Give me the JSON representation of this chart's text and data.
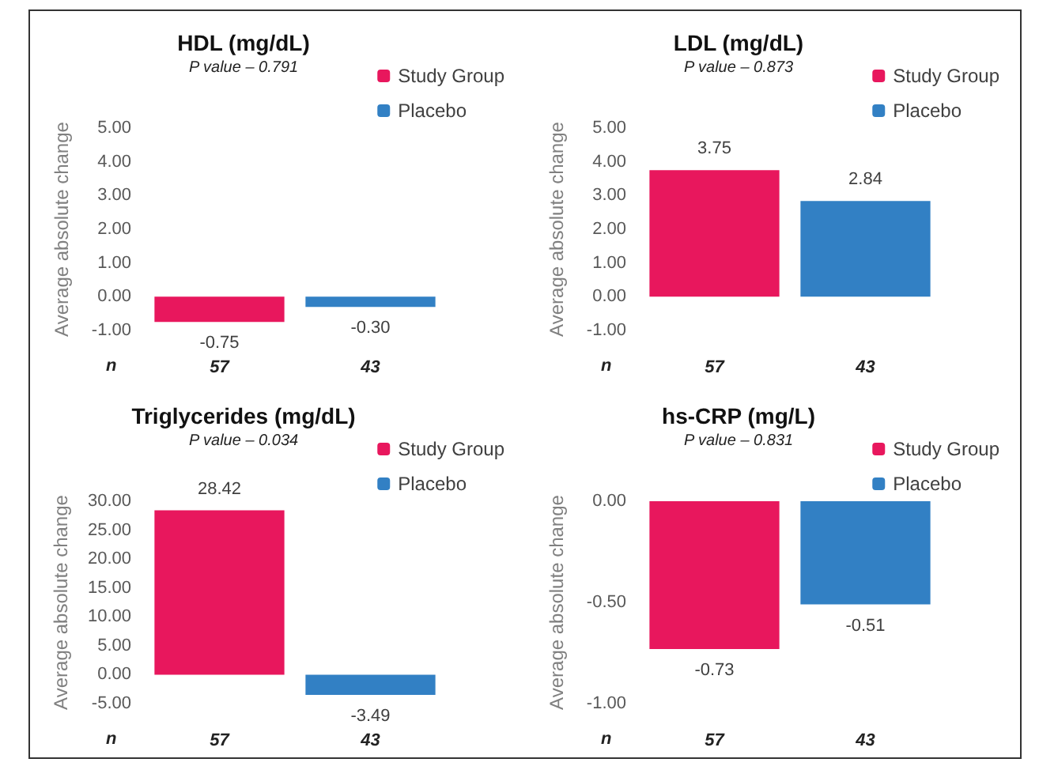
{
  "chart_data": [
    {
      "type": "bar",
      "title": "HDL (mg/dL)",
      "subtitle": "P value – 0.791",
      "ylabel": "Average absolute change",
      "categories": [
        "57",
        "43"
      ],
      "annotations": [
        "n"
      ],
      "series": [
        {
          "name": "Study Group",
          "color": "#e8175d",
          "values": [
            -0.75,
            null
          ],
          "value_labels": [
            "-0.75",
            null
          ]
        },
        {
          "name": "Placebo",
          "color": "#3280c4",
          "values": [
            null,
            -0.3
          ],
          "value_labels": [
            null,
            "-0.30"
          ]
        }
      ],
      "ylim": [
        -1,
        5
      ],
      "yticks": [
        {
          "value": -1,
          "label": "-1.00"
        },
        {
          "value": 0,
          "label": "0.00"
        },
        {
          "value": 1,
          "label": "1.00"
        },
        {
          "value": 2,
          "label": "2.00"
        },
        {
          "value": 3,
          "label": "3.00"
        },
        {
          "value": 4,
          "label": "4.00"
        },
        {
          "value": 5,
          "label": "5.00"
        }
      ],
      "legend": "top right"
    },
    {
      "type": "bar",
      "title": "LDL (mg/dL)",
      "subtitle": "P value – 0.873",
      "ylabel": "Average absolute change",
      "categories": [
        "57",
        "43"
      ],
      "annotations": [
        "n"
      ],
      "series": [
        {
          "name": "Study Group",
          "color": "#e8175d",
          "values": [
            3.75,
            null
          ],
          "value_labels": [
            "3.75",
            null
          ]
        },
        {
          "name": "Placebo",
          "color": "#3280c4",
          "values": [
            null,
            2.84
          ],
          "value_labels": [
            null,
            "2.84"
          ]
        }
      ],
      "ylim": [
        -1,
        5
      ],
      "yticks": [
        {
          "value": -1,
          "label": "-1.00"
        },
        {
          "value": 0,
          "label": "0.00"
        },
        {
          "value": 1,
          "label": "1.00"
        },
        {
          "value": 2,
          "label": "2.00"
        },
        {
          "value": 3,
          "label": "3.00"
        },
        {
          "value": 4,
          "label": "4.00"
        },
        {
          "value": 5,
          "label": "5.00"
        }
      ],
      "legend": "top right"
    },
    {
      "type": "bar",
      "title": "Triglycerides (mg/dL)",
      "subtitle": "P value – 0.034",
      "ylabel": "Average absolute change",
      "categories": [
        "57",
        "43"
      ],
      "annotations": [
        "n"
      ],
      "series": [
        {
          "name": "Study Group",
          "color": "#e8175d",
          "values": [
            28.42,
            null
          ],
          "value_labels": [
            "28.42",
            null
          ]
        },
        {
          "name": "Placebo",
          "color": "#3280c4",
          "values": [
            null,
            -3.49
          ],
          "value_labels": [
            null,
            "-3.49"
          ]
        }
      ],
      "ylim": [
        -5,
        30
      ],
      "yticks": [
        {
          "value": -5,
          "label": "-5.00"
        },
        {
          "value": 0,
          "label": "0.00"
        },
        {
          "value": 5,
          "label": "5.00"
        },
        {
          "value": 10,
          "label": "10.00"
        },
        {
          "value": 15,
          "label": "15.00"
        },
        {
          "value": 20,
          "label": "20.00"
        },
        {
          "value": 25,
          "label": "25.00"
        },
        {
          "value": 30,
          "label": "30.00"
        }
      ],
      "legend": "top right"
    },
    {
      "type": "bar",
      "title": "hs-CRP (mg/L)",
      "subtitle": "P value – 0.831",
      "ylabel": "Average absolute change",
      "categories": [
        "57",
        "43"
      ],
      "annotations": [
        "n"
      ],
      "series": [
        {
          "name": "Study Group",
          "color": "#e8175d",
          "values": [
            -0.73,
            null
          ],
          "value_labels": [
            "-0.73",
            null
          ]
        },
        {
          "name": "Placebo",
          "color": "#3280c4",
          "values": [
            null,
            -0.51
          ],
          "value_labels": [
            null,
            "-0.51"
          ]
        }
      ],
      "ylim": [
        -1,
        0
      ],
      "yticks": [
        {
          "value": -1,
          "label": "-1.00"
        },
        {
          "value": -0.5,
          "label": "-0.50"
        },
        {
          "value": 0,
          "label": "0.00"
        }
      ],
      "legend": "top right"
    }
  ]
}
